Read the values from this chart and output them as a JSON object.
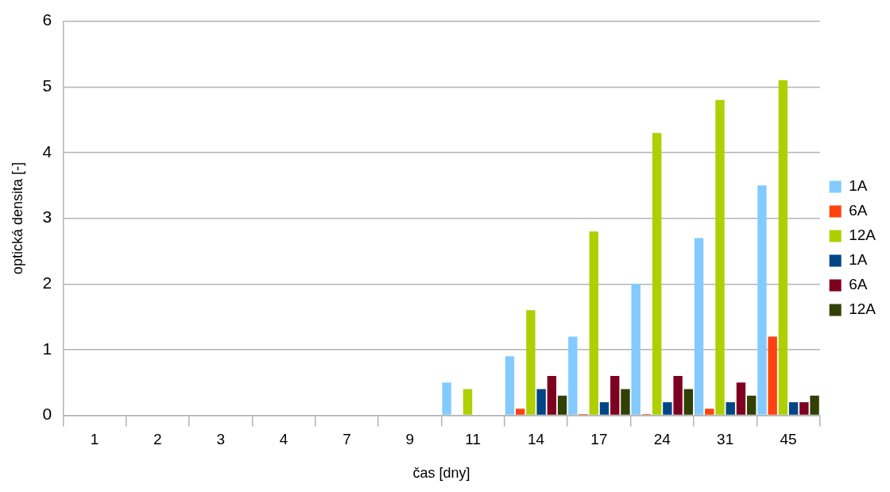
{
  "chart_data": {
    "type": "bar",
    "xlabel": "čas [dny]",
    "ylabel": "optická densita [-]",
    "categories": [
      "1",
      "2",
      "3",
      "4",
      "7",
      "9",
      "11",
      "14",
      "17",
      "24",
      "31",
      "45"
    ],
    "series": [
      {
        "name": "1A",
        "color": "#83caff",
        "values": [
          0,
          0,
          0,
          0,
          0,
          0,
          0.5,
          0.9,
          1.2,
          2.0,
          2.7,
          3.5
        ]
      },
      {
        "name": "6A",
        "color": "#ff420e",
        "values": [
          0,
          0,
          0,
          0,
          0,
          0,
          0,
          0.1,
          0.02,
          0.02,
          0.1,
          1.2
        ]
      },
      {
        "name": "12A",
        "color": "#aecf00",
        "values": [
          0,
          0,
          0,
          0,
          0,
          0,
          0.4,
          1.6,
          2.8,
          4.3,
          4.8,
          5.1
        ]
      },
      {
        "name": "1A",
        "color": "#004586",
        "values": [
          0,
          0,
          0,
          0,
          0,
          0,
          0,
          0.4,
          0.2,
          0.2,
          0.2,
          0.2
        ]
      },
      {
        "name": "6A",
        "color": "#7e0021",
        "values": [
          0,
          0,
          0,
          0,
          0,
          0,
          0,
          0.6,
          0.6,
          0.6,
          0.5,
          0.2
        ]
      },
      {
        "name": "12A",
        "color": "#314004",
        "values": [
          0,
          0,
          0,
          0,
          0,
          0,
          0,
          0.3,
          0.4,
          0.4,
          0.3,
          0.3
        ]
      }
    ],
    "ylim": [
      0,
      6
    ],
    "yticks": [
      0,
      1,
      2,
      3,
      4,
      5,
      6
    ],
    "grid": "y",
    "legend": "right"
  }
}
